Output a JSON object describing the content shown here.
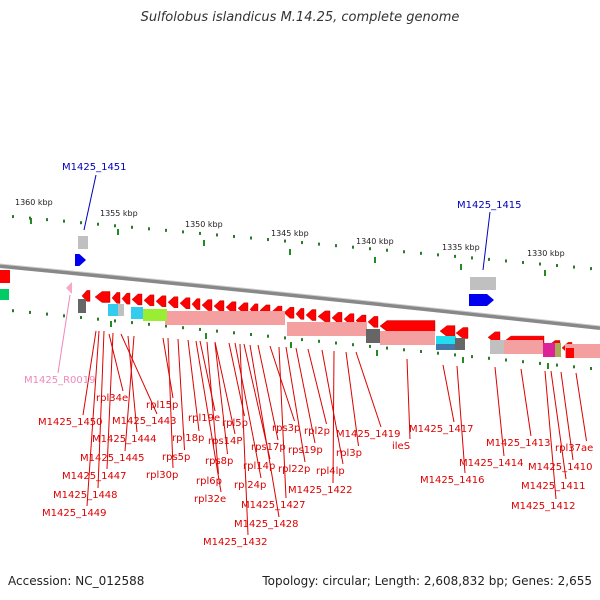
{
  "title": "Sulfolobus islandicus M.14.25, complete genome",
  "footer": {
    "accession": "Accession: NC_012588",
    "topology": "Topology: circular; Length: 2,608,832 bp; Genes: 2,655"
  },
  "colors": {
    "gene_red": "#ff0000",
    "gene_blue": "#0000ee",
    "label_red": "#dd0000",
    "label_blue": "#0000bb",
    "label_pink": "#ee88bb",
    "kbp_tick": "#228b22",
    "backbone": "#999999",
    "pale_red": "#f4a0a0"
  },
  "kbp_scale": [
    {
      "label": "1360 kbp"
    },
    {
      "label": "1355 kbp"
    },
    {
      "label": "1350 kbp"
    },
    {
      "label": "1345 kbp"
    },
    {
      "label": "1340 kbp"
    },
    {
      "label": "1335 kbp"
    },
    {
      "label": "1330 kbp"
    }
  ],
  "highlighted_genes": [
    {
      "name": "M1425_1451",
      "strand": "+"
    },
    {
      "name": "M1425_1415",
      "strand": "+"
    }
  ],
  "rna_gene": {
    "name": "M1425_R0019"
  },
  "gene_labels": [
    "M1425_1450",
    "rpl34e",
    "M1425_1443",
    "M1425_1444",
    "M1425_1445",
    "M1425_1447",
    "M1425_1448",
    "M1425_1449",
    "rpl15p",
    "rpl19e",
    "rpl18p",
    "rps5p",
    "rpl30p",
    "rps14P",
    "rpl5p",
    "rps8p",
    "rpl6p",
    "rpl32e",
    "rps3p",
    "rps17p",
    "rpl14p",
    "rpl24p",
    "M1425_1427",
    "M1425_1428",
    "M1425_1432",
    "rpl2p",
    "rps19p",
    "rpl22p",
    "rpl4lp",
    "M1425_1422",
    "M1425_1419",
    "rpl3p",
    "ileS",
    "M1425_1417",
    "M1425_1416",
    "M1425_1413",
    "M1425_1414",
    "rpl37ae",
    "M1425_1410",
    "M1425_1411",
    "M1425_1412"
  ]
}
